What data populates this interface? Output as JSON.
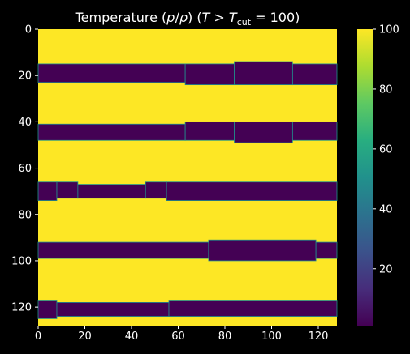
{
  "chart_data": {
    "type": "heatmap",
    "title_parts": {
      "prefix": "Temperature (",
      "p": "p",
      "slash": "/",
      "rho": "ρ",
      "mid": ") (",
      "T1": "T",
      "gt": " > ",
      "T2": "T",
      "sub": "cut",
      "suffix": " = 100)"
    },
    "xlabel": "",
    "ylabel": "",
    "xlim": [
      0,
      128
    ],
    "ylim": [
      128,
      0
    ],
    "x_ticks": [
      0,
      20,
      40,
      60,
      80,
      100,
      120
    ],
    "y_ticks": [
      0,
      20,
      40,
      60,
      80,
      100,
      120
    ],
    "colorbar": {
      "ticks": [
        20,
        40,
        60,
        80,
        100
      ],
      "range": [
        1,
        100
      ],
      "colormap": "viridis"
    },
    "background_value": 100,
    "low_value": 1,
    "low_bands": [
      {
        "segments": [
          [
            0,
            63,
            15,
            23
          ],
          [
            63,
            84,
            15,
            24
          ],
          [
            84,
            109,
            14,
            24
          ],
          [
            109,
            128,
            15,
            24
          ]
        ]
      },
      {
        "segments": [
          [
            0,
            63,
            41,
            48
          ],
          [
            63,
            84,
            40,
            48
          ],
          [
            84,
            109,
            40,
            49
          ],
          [
            109,
            128,
            40,
            48
          ]
        ]
      },
      {
        "segments": [
          [
            0,
            8,
            66,
            74
          ],
          [
            8,
            17,
            66,
            73
          ],
          [
            17,
            46,
            67,
            73
          ],
          [
            46,
            55,
            66,
            73
          ],
          [
            55,
            128,
            66,
            74
          ]
        ]
      },
      {
        "segments": [
          [
            0,
            73,
            92,
            99
          ],
          [
            73,
            119,
            91,
            100
          ],
          [
            119,
            128,
            92,
            99
          ]
        ]
      },
      {
        "segments": [
          [
            0,
            8,
            117,
            125
          ],
          [
            8,
            56,
            118,
            124
          ],
          [
            56,
            128,
            117,
            124
          ]
        ]
      }
    ]
  },
  "colors": {
    "background": "#000000",
    "high": "#fde725",
    "low": "#440154",
    "edge": "#21918c"
  }
}
